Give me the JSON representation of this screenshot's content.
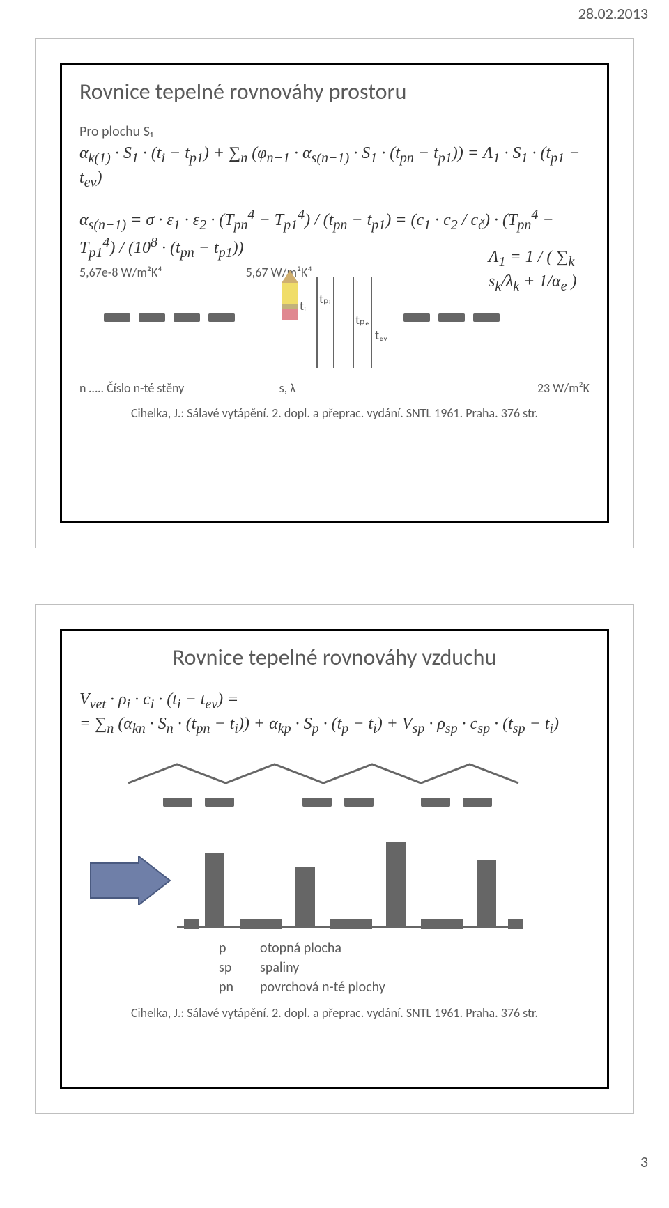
{
  "date": "28.02.2013",
  "page_number": "3",
  "colors": {
    "text": "#5a5a5a",
    "formula": "#333333",
    "border_outer": "#bfbfbf",
    "border_inner": "#000000",
    "diagram_fill": "#666666",
    "background": "#ffffff"
  },
  "slide1": {
    "title": "Rovnice tepelné rovnováhy prostoru",
    "subhead": "Pro plochu S₁",
    "eq1_html": "α<sub>k(1)</sub> · S<sub>1</sub> · (t<sub>i</sub> − t<sub>p1</sub>) + ∑<sub>n</sub> (φ<sub>n−1</sub> · α<sub>s(n−1)</sub> · S<sub>1</sub> · (t<sub>pn</sub> − t<sub>p1</sub>)) = Λ<sub>1</sub> · S<sub>1</sub> · (t<sub>p1</sub> − t<sub>ev</sub>)",
    "eq2_html": "α<sub>s(n−1)</sub> = σ · ε<sub>1</sub> · ε<sub>2</sub> · (T<sub>pn</sub><sup>4</sup> − T<sub>p1</sub><sup>4</sup>) / (t<sub>pn</sub> − t<sub>p1</sub>) = (c<sub>1</sub> · c<sub>2</sub> / c<sub>č</sub>) · (T<sub>pn</sub><sup>4</sup> − T<sub>p1</sub><sup>4</sup>) / (10<sup>8</sup> · (t<sub>pn</sub> − t<sub>p1</sub>))",
    "eq3_html": "Λ<sub>1</sub> = 1 / ( ∑<sub>k</sub> s<sub>k</sub>/λ<sub>k</sub> + 1/α<sub>e</sub> )",
    "anno_left": "5,67e-8 W/m²K⁴",
    "anno_mid": "5,67 W/m²K⁴",
    "anno_right": "23 W/m²K",
    "label_ti": "tᵢ",
    "label_tpi": "tₚᵢ",
    "label_tpe": "tₚₑ",
    "label_tev": "tₑᵥ",
    "label_slambda": "s, λ",
    "note_n": "n ….. Číslo n-té stěny",
    "cite": "Cihelka, J.: Sálavé vytápění. 2. dopl. a přeprac. vydání. SNTL 1961. Praha. 376 str."
  },
  "slide2": {
    "title": "Rovnice tepelné rovnováhy vzduchu",
    "eq1_html": "V<sub>vet</sub> · ρ<sub>i</sub> · c<sub>i</sub> · (t<sub>i</sub> − t<sub>ev</sub>) =",
    "eq2_html": "= ∑<sub>n</sub> (α<sub>kn</sub> · S<sub>n</sub> · (t<sub>pn</sub> − t<sub>i</sub>)) + α<sub>kp</sub> · S<sub>p</sub> · (t<sub>p</sub> − t<sub>i</sub>) + V<sub>sp</sub> · ρ<sub>sp</sub> · c<sub>sp</sub> · (t<sub>sp</sub> − t<sub>i</sub>)",
    "legend": {
      "keys": [
        "p",
        "sp",
        "pn"
      ],
      "vals": [
        "otopná plocha",
        "spaliny",
        "povrchová n-té plochy"
      ]
    },
    "cite": "Cihelka, J.: Sálavé vytápění. 2. dopl. a přeprac. vydání. SNTL 1961. Praha. 376 str."
  }
}
